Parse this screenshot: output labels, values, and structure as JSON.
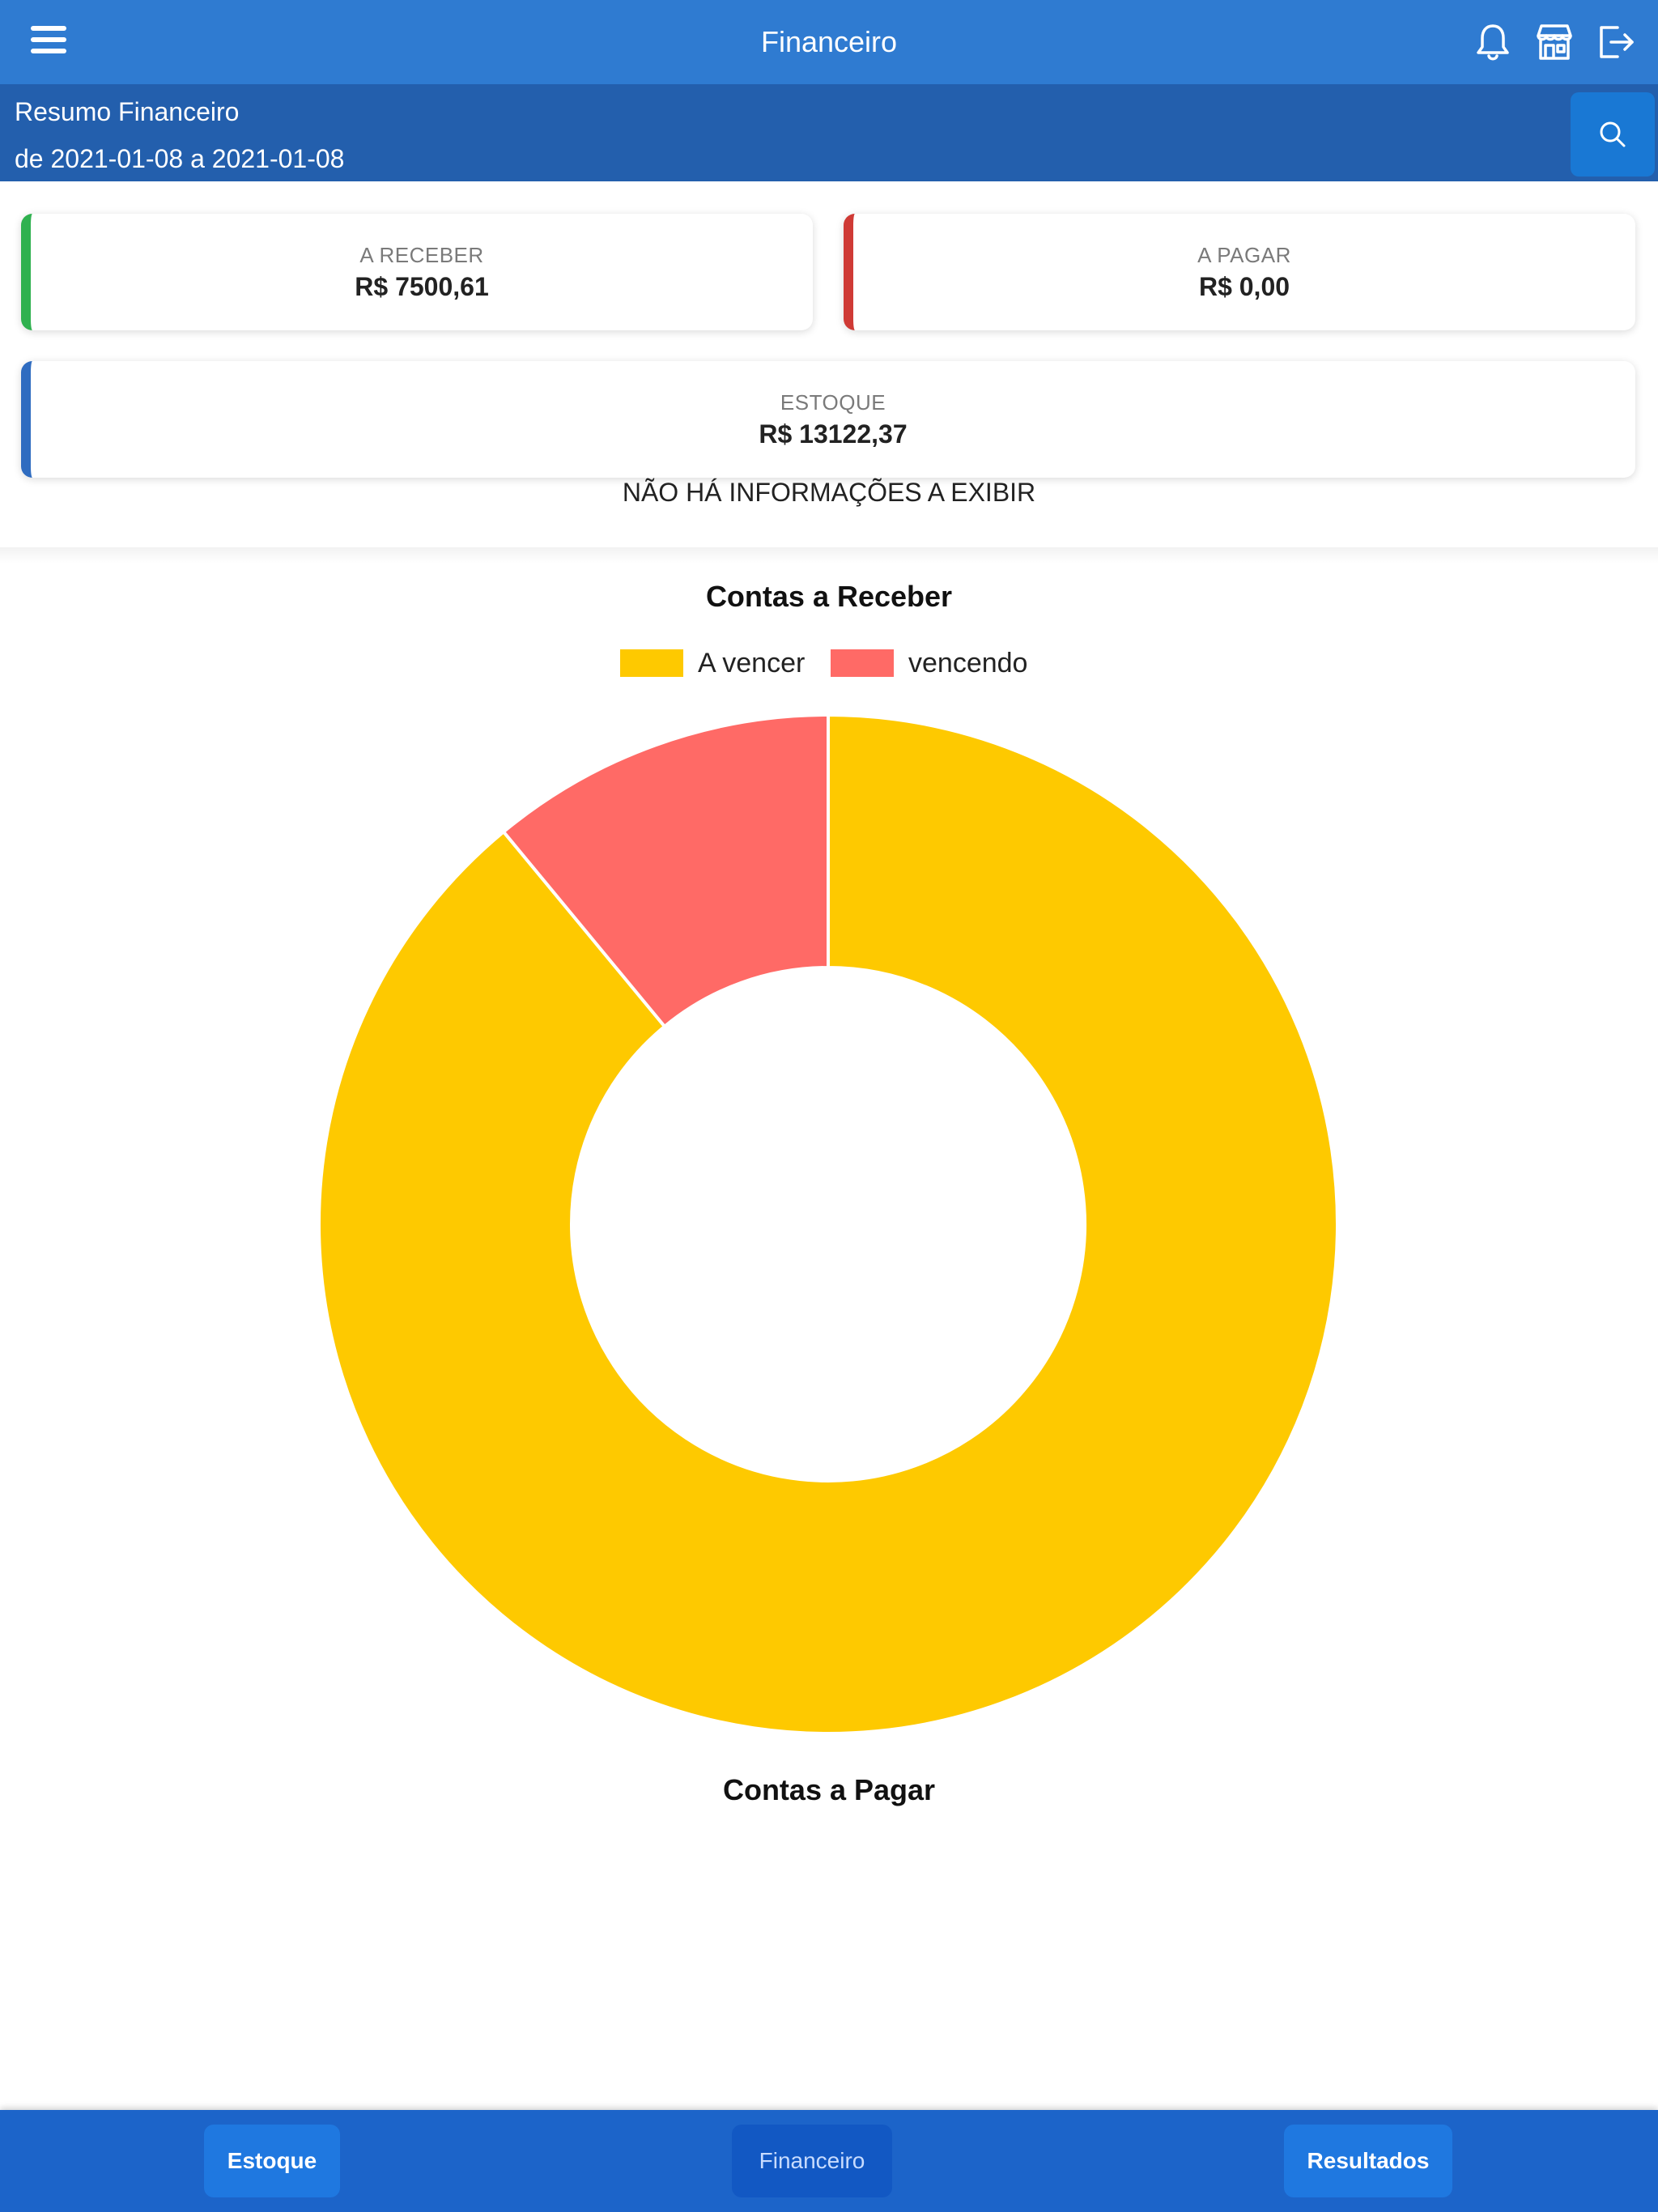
{
  "header": {
    "title": "Financeiro"
  },
  "icons": {
    "menu": "hamburger-menu-icon",
    "notifications": "bell-icon",
    "store": "store-icon",
    "logout": "logout-icon",
    "search": "search-icon"
  },
  "summary": {
    "title": "Resumo Financeiro",
    "period": "de 2021-01-08 a 2021-01-08"
  },
  "cards": {
    "receivable": {
      "label": "A RECEBER",
      "value": "R$ 7500,61",
      "color": "#2fb14f"
    },
    "payable": {
      "label": "A PAGAR",
      "value": "R$ 0,00",
      "color": "#cf3a35"
    },
    "stock": {
      "label": "ESTOQUE",
      "value": "R$ 13122,37",
      "color": "#2f6cc0"
    }
  },
  "no_info_message": "NÃO HÁ INFORMAÇÕES A EXIBIR",
  "chart_data": [
    {
      "type": "pie",
      "title": "Contas a Receber",
      "legend_position": "top",
      "categories": [
        "A vencer",
        "vencendo"
      ],
      "values": [
        89,
        11
      ],
      "colors": [
        "#fec900",
        "#ff6a66"
      ]
    },
    {
      "type": "pie",
      "title": "Contas a Pagar"
    }
  ],
  "tabs": [
    {
      "label": "Estoque",
      "active": false
    },
    {
      "label": "Financeiro",
      "active": true
    },
    {
      "label": "Resultados",
      "active": false
    }
  ]
}
